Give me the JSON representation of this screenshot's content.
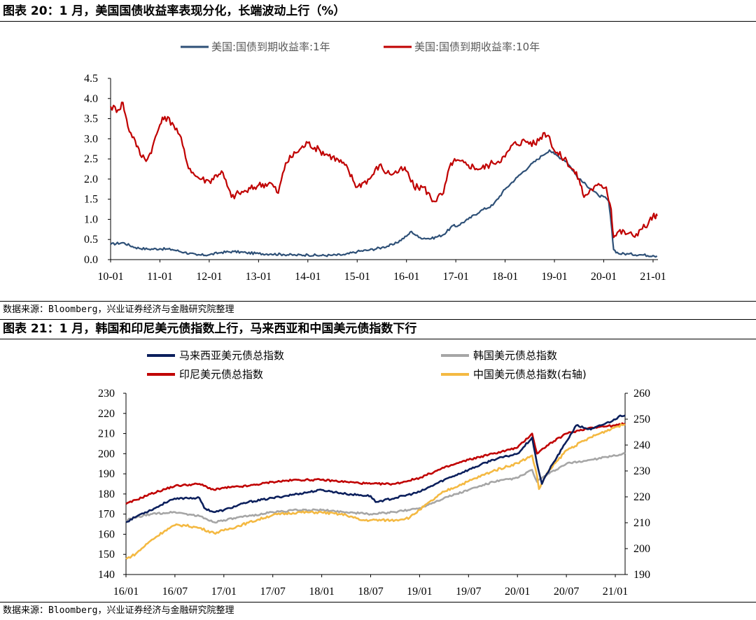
{
  "figure20": {
    "title": "图表 20：1 月，美国国债收益率表现分化，长端波动上行（%）",
    "source": "数据来源：Bloomberg，兴业证券经济与金融研究院整理"
  },
  "figure21": {
    "title": "图表 21：1 月，韩国和印尼美元债指数上行，马来西亚和中国美元债指数下行",
    "source": "数据来源：Bloomberg，兴业证券经济与金融研究院整理"
  },
  "chart_data": [
    {
      "type": "line",
      "title": "",
      "xlabel": "",
      "ylabel": "",
      "ylim": [
        0,
        4.5
      ],
      "yticks": [
        "0.0",
        "0.5",
        "1.0",
        "1.5",
        "2.0",
        "2.5",
        "3.0",
        "3.5",
        "4.0",
        "4.5"
      ],
      "xticks": [
        "10-01",
        "11-01",
        "12-01",
        "13-01",
        "14-01",
        "15-01",
        "16-01",
        "17-01",
        "18-01",
        "19-01",
        "20-01",
        "21-01"
      ],
      "grid": false,
      "legend": "top",
      "x_range": [
        2010.0,
        2021.1
      ],
      "series": [
        {
          "name": "美国:国债到期收益率:1年",
          "color": "#2e5077",
          "points": [
            [
              2010.0,
              0.38
            ],
            [
              2010.25,
              0.42
            ],
            [
              2010.5,
              0.3
            ],
            [
              2010.75,
              0.26
            ],
            [
              2011.0,
              0.27
            ],
            [
              2011.25,
              0.25
            ],
            [
              2011.5,
              0.18
            ],
            [
              2011.75,
              0.11
            ],
            [
              2012.0,
              0.12
            ],
            [
              2012.25,
              0.18
            ],
            [
              2012.5,
              0.2
            ],
            [
              2012.75,
              0.17
            ],
            [
              2013.0,
              0.15
            ],
            [
              2013.25,
              0.14
            ],
            [
              2013.5,
              0.13
            ],
            [
              2013.75,
              0.11
            ],
            [
              2014.0,
              0.12
            ],
            [
              2014.25,
              0.1
            ],
            [
              2014.5,
              0.11
            ],
            [
              2014.75,
              0.12
            ],
            [
              2015.0,
              0.2
            ],
            [
              2015.25,
              0.24
            ],
            [
              2015.5,
              0.3
            ],
            [
              2015.75,
              0.38
            ],
            [
              2016.0,
              0.58
            ],
            [
              2016.1,
              0.7
            ],
            [
              2016.25,
              0.55
            ],
            [
              2016.5,
              0.52
            ],
            [
              2016.75,
              0.62
            ],
            [
              2016.95,
              0.85
            ],
            [
              2017.0,
              0.82
            ],
            [
              2017.25,
              1.0
            ],
            [
              2017.5,
              1.21
            ],
            [
              2017.75,
              1.35
            ],
            [
              2018.0,
              1.75
            ],
            [
              2018.25,
              2.05
            ],
            [
              2018.5,
              2.33
            ],
            [
              2018.75,
              2.58
            ],
            [
              2018.9,
              2.72
            ],
            [
              2019.0,
              2.62
            ],
            [
              2019.25,
              2.43
            ],
            [
              2019.5,
              2.0
            ],
            [
              2019.75,
              1.75
            ],
            [
              2019.9,
              1.58
            ],
            [
              2020.0,
              1.56
            ],
            [
              2020.1,
              1.45
            ],
            [
              2020.15,
              0.9
            ],
            [
              2020.2,
              0.25
            ],
            [
              2020.3,
              0.15
            ],
            [
              2020.5,
              0.14
            ],
            [
              2020.75,
              0.12
            ],
            [
              2021.0,
              0.1
            ],
            [
              2021.08,
              0.09
            ]
          ]
        },
        {
          "name": "美国:国债到期收益率:10年",
          "color": "#c00000",
          "points": [
            [
              2010.0,
              3.8
            ],
            [
              2010.15,
              3.72
            ],
            [
              2010.25,
              3.9
            ],
            [
              2010.35,
              3.3
            ],
            [
              2010.5,
              2.95
            ],
            [
              2010.6,
              2.6
            ],
            [
              2010.75,
              2.5
            ],
            [
              2010.85,
              2.8
            ],
            [
              2011.0,
              3.35
            ],
            [
              2011.1,
              3.55
            ],
            [
              2011.25,
              3.4
            ],
            [
              2011.4,
              3.1
            ],
            [
              2011.55,
              2.4
            ],
            [
              2011.7,
              2.1
            ],
            [
              2011.85,
              2.0
            ],
            [
              2012.0,
              1.95
            ],
            [
              2012.25,
              2.2
            ],
            [
              2012.45,
              1.55
            ],
            [
              2012.6,
              1.65
            ],
            [
              2012.75,
              1.7
            ],
            [
              2013.0,
              1.85
            ],
            [
              2013.25,
              1.9
            ],
            [
              2013.4,
              1.65
            ],
            [
              2013.55,
              2.4
            ],
            [
              2013.75,
              2.65
            ],
            [
              2014.0,
              2.9
            ],
            [
              2014.25,
              2.7
            ],
            [
              2014.5,
              2.55
            ],
            [
              2014.75,
              2.35
            ],
            [
              2015.0,
              1.8
            ],
            [
              2015.1,
              1.9
            ],
            [
              2015.25,
              2.0
            ],
            [
              2015.45,
              2.35
            ],
            [
              2015.6,
              2.15
            ],
            [
              2015.75,
              2.15
            ],
            [
              2015.95,
              2.25
            ],
            [
              2016.0,
              2.2
            ],
            [
              2016.15,
              1.8
            ],
            [
              2016.35,
              1.8
            ],
            [
              2016.55,
              1.45
            ],
            [
              2016.75,
              1.65
            ],
            [
              2016.9,
              2.4
            ],
            [
              2017.0,
              2.45
            ],
            [
              2017.25,
              2.35
            ],
            [
              2017.5,
              2.25
            ],
            [
              2017.75,
              2.4
            ],
            [
              2018.0,
              2.55
            ],
            [
              2018.15,
              2.85
            ],
            [
              2018.4,
              2.95
            ],
            [
              2018.6,
              2.87
            ],
            [
              2018.8,
              3.15
            ],
            [
              2018.9,
              3.05
            ],
            [
              2019.0,
              2.7
            ],
            [
              2019.25,
              2.45
            ],
            [
              2019.5,
              2.0
            ],
            [
              2019.6,
              1.55
            ],
            [
              2019.75,
              1.75
            ],
            [
              2019.95,
              1.85
            ],
            [
              2020.05,
              1.8
            ],
            [
              2020.15,
              1.25
            ],
            [
              2020.2,
              0.55
            ],
            [
              2020.3,
              0.7
            ],
            [
              2020.5,
              0.65
            ],
            [
              2020.6,
              0.58
            ],
            [
              2020.75,
              0.75
            ],
            [
              2020.9,
              0.88
            ],
            [
              2021.0,
              1.1
            ],
            [
              2021.05,
              1.02
            ],
            [
              2021.08,
              1.08
            ]
          ]
        }
      ]
    },
    {
      "type": "line",
      "title": "",
      "xlabel": "",
      "ylabel": "",
      "ylim": [
        140,
        230
      ],
      "y2lim": [
        190,
        260
      ],
      "yticks": [
        "140",
        "150",
        "160",
        "170",
        "180",
        "190",
        "200",
        "210",
        "220",
        "230"
      ],
      "y2ticks": [
        "190",
        "200",
        "210",
        "220",
        "230",
        "240",
        "250",
        "260"
      ],
      "xticks": [
        "16/01",
        "16/07",
        "17/01",
        "17/07",
        "18/01",
        "18/07",
        "19/01",
        "19/07",
        "20/01",
        "20/07",
        "21/01"
      ],
      "grid": false,
      "legend": "top",
      "x_range": [
        2016.0,
        2021.1
      ],
      "series": [
        {
          "name": "马来西亚美元债总指数",
          "color": "#0b1f5c",
          "axis": "left",
          "points": [
            [
              2016.0,
              166
            ],
            [
              2016.15,
              170
            ],
            [
              2016.3,
              173
            ],
            [
              2016.45,
              177
            ],
            [
              2016.6,
              178
            ],
            [
              2016.75,
              178
            ],
            [
              2016.8,
              173
            ],
            [
              2016.9,
              171
            ],
            [
              2017.0,
              172
            ],
            [
              2017.25,
              176
            ],
            [
              2017.5,
              178
            ],
            [
              2017.75,
              180
            ],
            [
              2018.0,
              182
            ],
            [
              2018.25,
              180
            ],
            [
              2018.5,
              179
            ],
            [
              2018.55,
              176
            ],
            [
              2018.75,
              178
            ],
            [
              2019.0,
              181
            ],
            [
              2019.25,
              187
            ],
            [
              2019.5,
              192
            ],
            [
              2019.75,
              197
            ],
            [
              2020.0,
              200
            ],
            [
              2020.15,
              208
            ],
            [
              2020.2,
              195
            ],
            [
              2020.25,
              185
            ],
            [
              2020.3,
              190
            ],
            [
              2020.5,
              206
            ],
            [
              2020.6,
              214
            ],
            [
              2020.75,
              212
            ],
            [
              2021.0,
              217
            ],
            [
              2021.05,
              219
            ],
            [
              2021.1,
              219
            ]
          ]
        },
        {
          "name": "韩国美元债总指数",
          "color": "#a6a6a6",
          "axis": "left",
          "points": [
            [
              2016.0,
              167
            ],
            [
              2016.25,
              170
            ],
            [
              2016.5,
              171
            ],
            [
              2016.75,
              169
            ],
            [
              2016.9,
              166
            ],
            [
              2017.0,
              167
            ],
            [
              2017.25,
              169
            ],
            [
              2017.5,
              171
            ],
            [
              2017.75,
              172
            ],
            [
              2018.0,
              172
            ],
            [
              2018.25,
              171
            ],
            [
              2018.5,
              170
            ],
            [
              2018.75,
              171
            ],
            [
              2019.0,
              173
            ],
            [
              2019.25,
              178
            ],
            [
              2019.5,
              182
            ],
            [
              2019.75,
              186
            ],
            [
              2020.0,
              188
            ],
            [
              2020.15,
              192
            ],
            [
              2020.2,
              186
            ],
            [
              2020.25,
              188
            ],
            [
              2020.5,
              195
            ],
            [
              2020.75,
              197
            ],
            [
              2021.0,
              199
            ],
            [
              2021.1,
              200
            ]
          ]
        },
        {
          "name": "印尼美元债总指数",
          "color": "#c00000",
          "axis": "left",
          "points": [
            [
              2016.0,
              175
            ],
            [
              2016.25,
              180
            ],
            [
              2016.5,
              184
            ],
            [
              2016.75,
              185
            ],
            [
              2016.9,
              182
            ],
            [
              2017.0,
              183
            ],
            [
              2017.25,
              184
            ],
            [
              2017.5,
              186
            ],
            [
              2017.75,
              187
            ],
            [
              2018.0,
              187
            ],
            [
              2018.25,
              186
            ],
            [
              2018.5,
              185
            ],
            [
              2018.75,
              185
            ],
            [
              2019.0,
              188
            ],
            [
              2019.25,
              193
            ],
            [
              2019.5,
              197
            ],
            [
              2019.75,
              200
            ],
            [
              2020.0,
              203
            ],
            [
              2020.15,
              210
            ],
            [
              2020.2,
              200
            ],
            [
              2020.3,
              204
            ],
            [
              2020.5,
              210
            ],
            [
              2020.75,
              213
            ],
            [
              2021.0,
              214
            ],
            [
              2021.1,
              215
            ]
          ]
        },
        {
          "name": "中国美元债总指数(右轴)",
          "color": "#f4b942",
          "axis": "right",
          "points": [
            [
              2016.0,
              196
            ],
            [
              2016.1,
              198
            ],
            [
              2016.25,
              203
            ],
            [
              2016.4,
              207
            ],
            [
              2016.5,
              209
            ],
            [
              2016.6,
              209
            ],
            [
              2016.75,
              208
            ],
            [
              2016.9,
              206
            ],
            [
              2017.0,
              207
            ],
            [
              2017.25,
              210
            ],
            [
              2017.5,
              213
            ],
            [
              2017.75,
              214
            ],
            [
              2018.0,
              214
            ],
            [
              2018.25,
              213
            ],
            [
              2018.4,
              211
            ],
            [
              2018.5,
              211
            ],
            [
              2018.75,
              211
            ],
            [
              2018.9,
              212
            ],
            [
              2019.0,
              215
            ],
            [
              2019.25,
              222
            ],
            [
              2019.5,
              226
            ],
            [
              2019.75,
              230
            ],
            [
              2020.0,
              233
            ],
            [
              2020.15,
              236
            ],
            [
              2020.2,
              228
            ],
            [
              2020.22,
              223
            ],
            [
              2020.3,
              229
            ],
            [
              2020.5,
              238
            ],
            [
              2020.75,
              243
            ],
            [
              2021.0,
              247
            ],
            [
              2021.1,
              248
            ]
          ]
        }
      ]
    }
  ]
}
